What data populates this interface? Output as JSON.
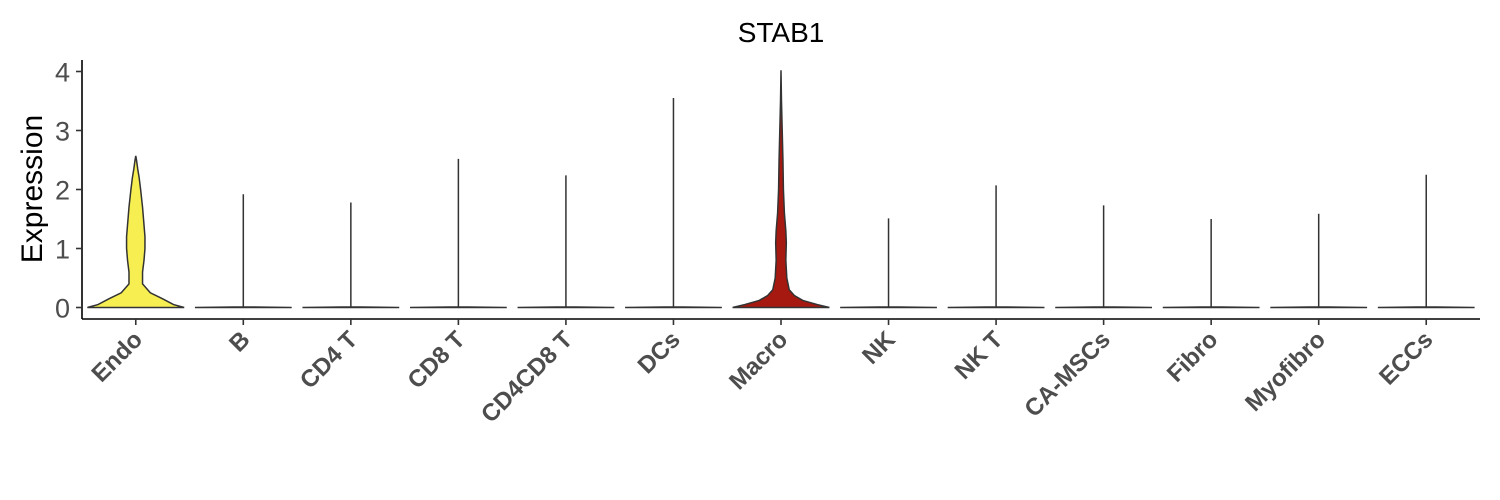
{
  "chart_data": {
    "type": "violin",
    "title": "STAB1",
    "xlabel": "",
    "ylabel": "Expression",
    "ylim": [
      -0.1,
      4.2
    ],
    "yticks": [
      0,
      1,
      2,
      3,
      4
    ],
    "grid": false,
    "legend": "none",
    "categories": [
      "Endo",
      "B",
      "CD4 T",
      "CD8 T",
      "CD4CD8 T",
      "DCs",
      "Macro",
      "NK",
      "NK T",
      "CA-MSCs",
      "Fibro",
      "Myofibro",
      "ECCs"
    ],
    "series": [
      {
        "category": "Endo",
        "color": "#f7ef52",
        "max": 2.57,
        "profile": [
          [
            0,
            1.0
          ],
          [
            0.05,
            0.78
          ],
          [
            0.15,
            0.55
          ],
          [
            0.25,
            0.3
          ],
          [
            0.4,
            0.14
          ],
          [
            0.6,
            0.14
          ],
          [
            0.8,
            0.17
          ],
          [
            1.0,
            0.19
          ],
          [
            1.2,
            0.19
          ],
          [
            1.4,
            0.17
          ],
          [
            1.7,
            0.14
          ],
          [
            2.0,
            0.1
          ],
          [
            2.2,
            0.07
          ],
          [
            2.35,
            0.04
          ],
          [
            2.5,
            0.015
          ],
          [
            2.57,
            0.0
          ]
        ]
      },
      {
        "category": "B",
        "color": "#f9d75d",
        "max": 1.92,
        "profile": [
          [
            0,
            1.0
          ],
          [
            0.01,
            0.0
          ]
        ]
      },
      {
        "category": "CD4 T",
        "color": "#f9c85a",
        "max": 1.78,
        "profile": [
          [
            0,
            1.0
          ],
          [
            0.01,
            0.0
          ]
        ]
      },
      {
        "category": "CD8 T",
        "color": "#f6b24f",
        "max": 2.52,
        "profile": [
          [
            0,
            1.0
          ],
          [
            0.01,
            0.0
          ]
        ]
      },
      {
        "category": "CD4CD8 T",
        "color": "#f29b45",
        "max": 2.24,
        "profile": [
          [
            0,
            1.0
          ],
          [
            0.01,
            0.0
          ]
        ]
      },
      {
        "category": "DCs",
        "color": "#ec8a3d",
        "max": 3.55,
        "profile": [
          [
            0,
            1.0
          ],
          [
            0.01,
            0.0
          ]
        ]
      },
      {
        "category": "Macro",
        "color": "#a51910",
        "max": 4.02,
        "profile": [
          [
            0,
            1.0
          ],
          [
            0.05,
            0.75
          ],
          [
            0.12,
            0.45
          ],
          [
            0.2,
            0.28
          ],
          [
            0.3,
            0.17
          ],
          [
            0.5,
            0.12
          ],
          [
            0.8,
            0.1
          ],
          [
            1.1,
            0.11
          ],
          [
            1.3,
            0.1
          ],
          [
            1.6,
            0.07
          ],
          [
            2.0,
            0.05
          ],
          [
            2.5,
            0.04
          ],
          [
            3.0,
            0.025
          ],
          [
            3.5,
            0.01
          ],
          [
            4.02,
            0.0
          ]
        ]
      },
      {
        "category": "NK",
        "color": "#d9542c",
        "max": 1.51,
        "profile": [
          [
            0,
            1.0
          ],
          [
            0.01,
            0.0
          ]
        ]
      },
      {
        "category": "NK T",
        "color": "#cf4327",
        "max": 2.07,
        "profile": [
          [
            0,
            1.0
          ],
          [
            0.01,
            0.0
          ]
        ]
      },
      {
        "category": "CA-MSCs",
        "color": "#c23522",
        "max": 1.73,
        "profile": [
          [
            0,
            1.0
          ],
          [
            0.01,
            0.0
          ]
        ]
      },
      {
        "category": "Fibro",
        "color": "#b52a1d",
        "max": 1.5,
        "profile": [
          [
            0,
            1.0
          ],
          [
            0.01,
            0.0
          ]
        ]
      },
      {
        "category": "Myofibro",
        "color": "#a51f17",
        "max": 1.59,
        "profile": [
          [
            0,
            1.0
          ],
          [
            0.01,
            0.0
          ]
        ]
      },
      {
        "category": "ECCs",
        "color": "#951a12",
        "max": 2.25,
        "profile": [
          [
            0,
            1.0
          ],
          [
            0.01,
            0.0
          ]
        ]
      }
    ]
  }
}
